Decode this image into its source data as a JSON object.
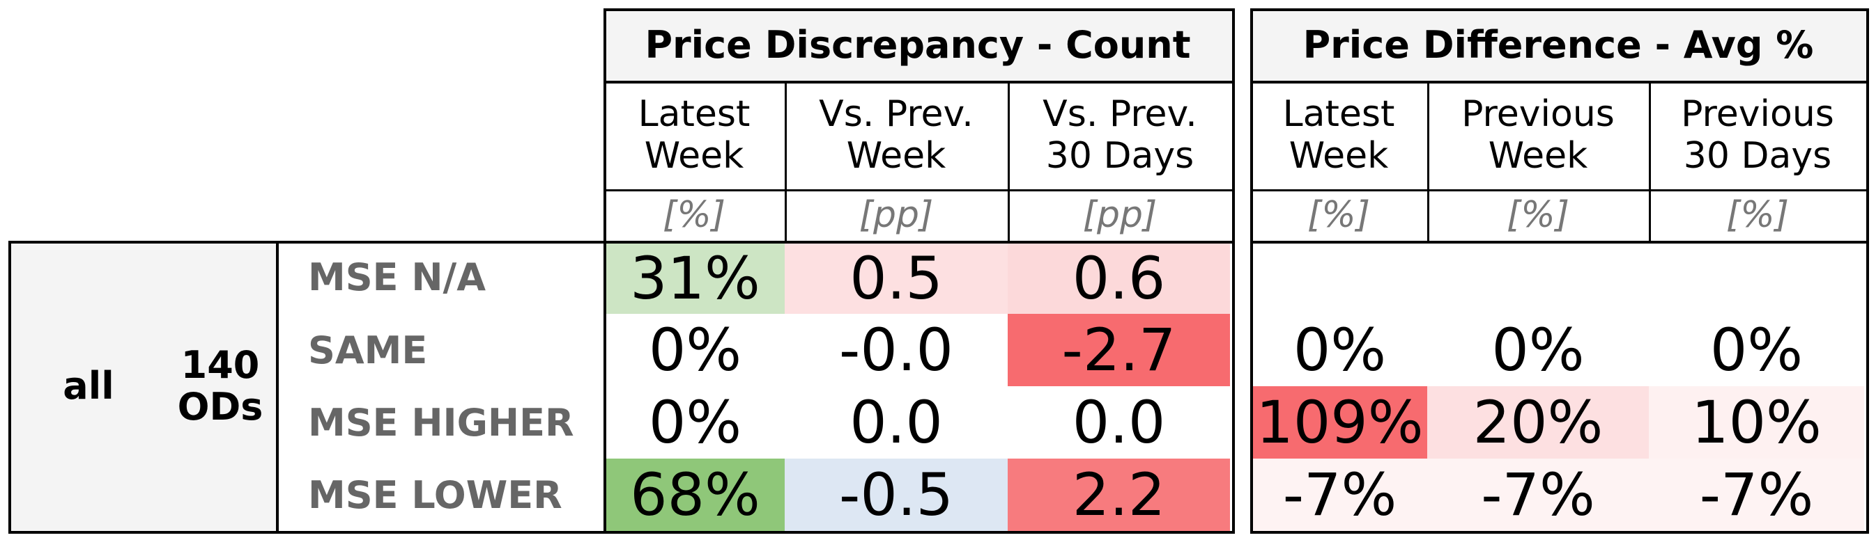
{
  "table": {
    "sections": [
      {
        "title": "Price Discrepancy - Count",
        "columns": [
          {
            "label": "Latest\nWeek",
            "unit": "[%]"
          },
          {
            "label": "Vs. Prev.\nWeek",
            "unit": "[pp]"
          },
          {
            "label": "Vs. Prev.\n30 Days",
            "unit": "[pp]"
          }
        ]
      },
      {
        "title": "Price Difference - Avg %",
        "columns": [
          {
            "label": "Latest\nWeek",
            "unit": "[%]"
          },
          {
            "label": "Previous\nWeek",
            "unit": "[%]"
          },
          {
            "label": "Previous\n30 Days",
            "unit": "[%]"
          }
        ]
      }
    ],
    "group": {
      "label": "all",
      "count": "140\nODs"
    },
    "rows": [
      {
        "label": "MSE N/A",
        "cells": [
          {
            "text": "31%",
            "color": "#cde5c4"
          },
          {
            "text": "0.5",
            "color": "#fde0e1"
          },
          {
            "text": "0.6",
            "color": "#fcd9da"
          },
          {
            "text": "",
            "color": "#ffffff"
          },
          {
            "text": "",
            "color": "#ffffff"
          },
          {
            "text": "",
            "color": "#ffffff"
          }
        ]
      },
      {
        "label": "SAME",
        "cells": [
          {
            "text": "0%",
            "color": "#ffffff"
          },
          {
            "text": "-0.0",
            "color": "#ffffff"
          },
          {
            "text": "-2.7",
            "color": "#f76b6f"
          },
          {
            "text": "0%",
            "color": "#ffffff"
          },
          {
            "text": "0%",
            "color": "#ffffff"
          },
          {
            "text": "0%",
            "color": "#ffffff"
          }
        ]
      },
      {
        "label": "MSE HIGHER",
        "cells": [
          {
            "text": "0%",
            "color": "#ffffff"
          },
          {
            "text": "0.0",
            "color": "#ffffff"
          },
          {
            "text": "0.0",
            "color": "#ffffff"
          },
          {
            "text": "109%",
            "color": "#f76b6f"
          },
          {
            "text": "20%",
            "color": "#fde0e1"
          },
          {
            "text": "10%",
            "color": "#fef1f1"
          }
        ]
      },
      {
        "label": "MSE LOWER",
        "cells": [
          {
            "text": "68%",
            "color": "#8fc779"
          },
          {
            "text": "-0.5",
            "color": "#dde7f3"
          },
          {
            "text": "2.2",
            "color": "#f77b7e"
          },
          {
            "text": "-7%",
            "color": "#fef3f3"
          },
          {
            "text": "-7%",
            "color": "#fef3f3"
          },
          {
            "text": "-7%",
            "color": "#fef3f3"
          }
        ]
      }
    ]
  }
}
